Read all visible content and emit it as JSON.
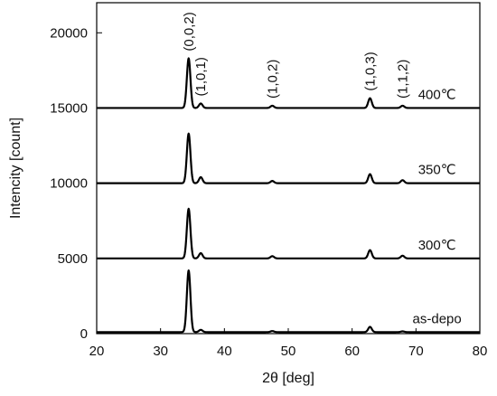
{
  "chart_data": {
    "type": "line",
    "xlabel": "2θ [deg]",
    "ylabel": "Intencity [count]",
    "xlim": [
      20,
      80
    ],
    "ylim": [
      0,
      22000
    ],
    "xticks": [
      20,
      30,
      40,
      50,
      60,
      70,
      80
    ],
    "yticks": [
      0,
      5000,
      10000,
      15000,
      20000
    ],
    "grid": false,
    "legend": "none",
    "peak_labels": [
      {
        "text": "(0,0,2)",
        "x": 34.4
      },
      {
        "text": "(1,0,1)",
        "x": 36.3
      },
      {
        "text": "(1,0,2)",
        "x": 47.5
      },
      {
        "text": "(1,0,3)",
        "x": 62.8
      },
      {
        "text": "(1,1,2)",
        "x": 67.9
      }
    ],
    "series": [
      {
        "name": "as-depo",
        "baseline": 100,
        "peaks": [
          {
            "x": 34.4,
            "y": 4200
          },
          {
            "x": 36.3,
            "y": 250
          },
          {
            "x": 47.5,
            "y": 170
          },
          {
            "x": 62.8,
            "y": 450
          },
          {
            "x": 67.9,
            "y": 150
          }
        ]
      },
      {
        "name": "300℃",
        "baseline": 5000,
        "peaks": [
          {
            "x": 34.4,
            "y": 8300
          },
          {
            "x": 36.3,
            "y": 5350
          },
          {
            "x": 47.5,
            "y": 5150
          },
          {
            "x": 62.8,
            "y": 5550
          },
          {
            "x": 67.9,
            "y": 5180
          }
        ]
      },
      {
        "name": "350℃",
        "baseline": 10000,
        "peaks": [
          {
            "x": 34.4,
            "y": 13300
          },
          {
            "x": 36.3,
            "y": 10400
          },
          {
            "x": 47.5,
            "y": 10150
          },
          {
            "x": 62.8,
            "y": 10600
          },
          {
            "x": 67.9,
            "y": 10200
          }
        ]
      },
      {
        "name": "400℃",
        "baseline": 15000,
        "peaks": [
          {
            "x": 34.4,
            "y": 18300
          },
          {
            "x": 36.3,
            "y": 15300
          },
          {
            "x": 47.5,
            "y": 15150
          },
          {
            "x": 62.8,
            "y": 15650
          },
          {
            "x": 67.9,
            "y": 15150
          }
        ]
      }
    ]
  }
}
